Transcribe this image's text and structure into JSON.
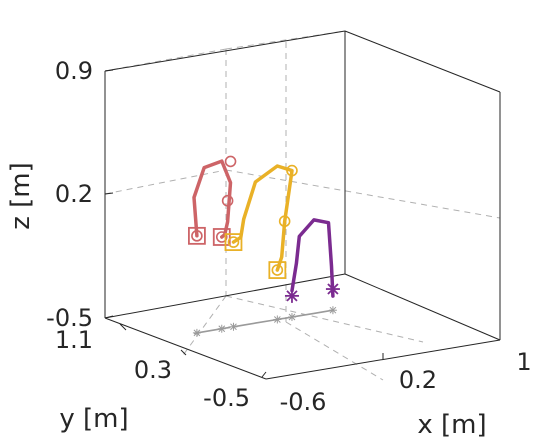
{
  "chart_data": {
    "type": "line3d",
    "xlabel": "x [m]",
    "ylabel": "y [m]",
    "zlabel": "z [m]",
    "xlim": [
      -0.6,
      1
    ],
    "ylim": [
      -0.5,
      1.1
    ],
    "zlim": [
      -0.5,
      0.9
    ],
    "x_ticks": [
      "-0.6",
      "0.2",
      "1"
    ],
    "y_ticks": [
      "-0.5",
      "0.3",
      "1.1"
    ],
    "z_ticks": [
      "-0.5",
      "0.2",
      "0.9"
    ],
    "grid": true,
    "colors": {
      "red": "#cd6467",
      "yellow": "#e9b127",
      "purple": "#7b2b90",
      "shadow": "#9a9a9a",
      "axis": "#262626"
    },
    "series": [
      {
        "color": "red",
        "path": [
          [
            -0.35,
            0.55,
            0.05
          ],
          [
            -0.37,
            0.55,
            0.27
          ],
          [
            -0.3,
            0.55,
            0.43
          ],
          [
            -0.18,
            0.55,
            0.45
          ],
          [
            -0.12,
            0.55,
            0.32
          ],
          [
            -0.14,
            0.55,
            0.1
          ],
          [
            -0.16,
            0.55,
            0.03
          ],
          [
            -0.18,
            0.55,
            0.02
          ]
        ],
        "markers": [
          {
            "type": "square",
            "x": -0.35,
            "y": 0.55,
            "z": 0.05
          },
          {
            "type": "circle",
            "x": -0.35,
            "y": 0.55,
            "z": 0.05
          },
          {
            "type": "circle",
            "x": -0.12,
            "y": 0.55,
            "z": 0.44
          },
          {
            "type": "circle",
            "x": -0.14,
            "y": 0.55,
            "z": 0.22
          },
          {
            "type": "square",
            "x": -0.18,
            "y": 0.55,
            "z": 0.02
          },
          {
            "type": "circle",
            "x": -0.18,
            "y": 0.55,
            "z": 0.02
          }
        ]
      },
      {
        "color": "yellow",
        "path": [
          [
            -0.1,
            0.55,
            -0.02
          ],
          [
            -0.05,
            0.55,
            0.0
          ],
          [
            -0.03,
            0.55,
            0.1
          ],
          [
            0.05,
            0.55,
            0.3
          ],
          [
            0.2,
            0.55,
            0.37
          ],
          [
            0.3,
            0.55,
            0.33
          ],
          [
            0.27,
            0.55,
            0.16
          ],
          [
            0.25,
            0.55,
            0.05
          ],
          [
            0.23,
            0.55,
            -0.15
          ],
          [
            0.2,
            0.55,
            -0.22
          ]
        ],
        "markers": [
          {
            "type": "square",
            "x": -0.1,
            "y": 0.55,
            "z": -0.02
          },
          {
            "type": "circle",
            "x": -0.1,
            "y": 0.55,
            "z": -0.02
          },
          {
            "type": "circle",
            "x": 0.3,
            "y": 0.55,
            "z": 0.33
          },
          {
            "type": "circle",
            "x": 0.25,
            "y": 0.55,
            "z": 0.05
          },
          {
            "type": "square",
            "x": 0.2,
            "y": 0.55,
            "z": -0.22
          },
          {
            "type": "circle",
            "x": 0.2,
            "y": 0.55,
            "z": -0.22
          }
        ]
      },
      {
        "color": "purple",
        "path": [
          [
            0.3,
            0.55,
            -0.35
          ],
          [
            0.33,
            0.55,
            -0.2
          ],
          [
            0.35,
            0.55,
            -0.05
          ],
          [
            0.45,
            0.55,
            0.03
          ],
          [
            0.55,
            0.55,
            0.0
          ],
          [
            0.57,
            0.55,
            -0.25
          ],
          [
            0.58,
            0.55,
            -0.42
          ]
        ],
        "markers": [
          {
            "type": "star",
            "x": 0.3,
            "y": 0.55,
            "z": -0.38
          },
          {
            "type": "star",
            "x": 0.58,
            "y": 0.55,
            "z": -0.38
          }
        ]
      }
    ]
  }
}
